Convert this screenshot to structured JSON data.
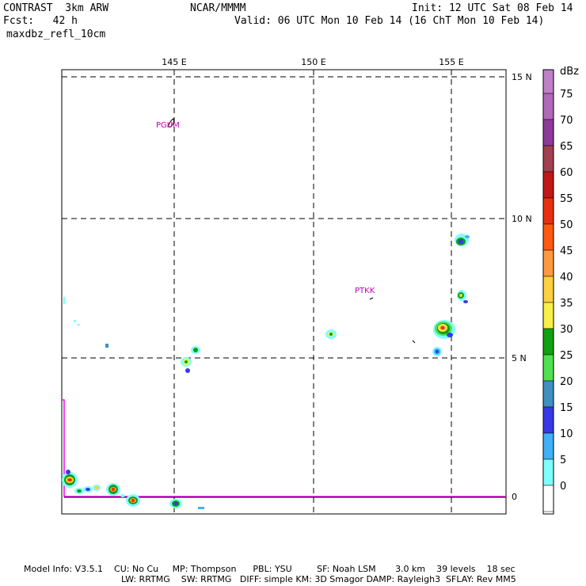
{
  "header": {
    "model": "CONTRAST  3km ARW",
    "forecast": "Fcst:   42 h",
    "field": "maxdbz_refl_10cm",
    "center": "NCAR/MMMM",
    "init": "Init: 12 UTC Sat 08 Feb 14",
    "valid": "Valid: 06 UTC Mon 10 Feb 14 (16 ChT Mon 10 Feb 14)"
  },
  "map": {
    "lon_labels": [
      "145 E",
      "150 E",
      "155 E"
    ],
    "lat_labels": [
      "15 N",
      "10 N",
      "5 N",
      "0"
    ],
    "stations": [
      "PGUM",
      "PTKK"
    ],
    "boundary_color": "#ff00ff"
  },
  "colorbar": {
    "units": "dBz",
    "levels": [
      "75",
      "70",
      "65",
      "60",
      "55",
      "50",
      "45",
      "40",
      "35",
      "30",
      "25",
      "20",
      "15",
      "10",
      "5",
      "0"
    ],
    "colors": [
      "#c080c8",
      "#b068b8",
      "#8c3c98",
      "#a04050",
      "#c01818",
      "#e83010",
      "#ff5a10",
      "#ff9a40",
      "#ffd040",
      "#f8f048",
      "#10a010",
      "#50e050",
      "#4090c0",
      "#3838e8",
      "#40b0f8",
      "#80ffff",
      "#ffffff"
    ]
  },
  "footer": {
    "line1": "Model Info: V3.5.1    CU: No Cu     MP: Thompson      PBL: YSU         SF: Noah LSM       3.0 km    39 levels    18 sec",
    "line2": "LW: RRTMG    SW: RRTMG   DIFF: simple KM: 3D Smagor DAMP: Rayleigh3  SFLAY: Rev MM5"
  }
}
